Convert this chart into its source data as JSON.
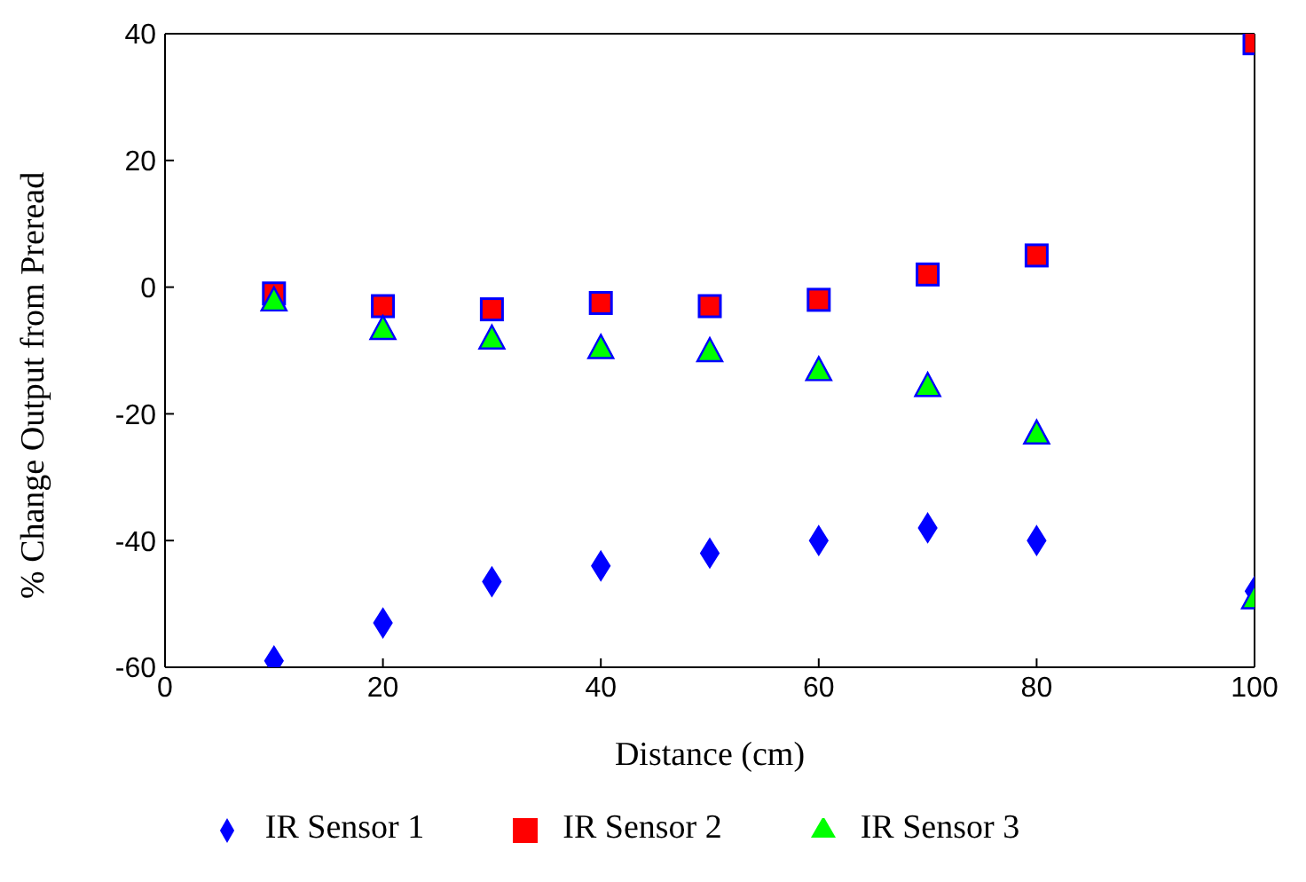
{
  "chart_data": {
    "type": "scatter",
    "xlabel": "Distance (cm)",
    "ylabel": "% Change Output from Preread",
    "x": [
      10,
      20,
      30,
      40,
      50,
      60,
      70,
      80,
      100
    ],
    "series": [
      {
        "name": "IR Sensor 1",
        "color": "#0000ff",
        "marker": "diamond",
        "values": [
          -59,
          -53,
          -46.5,
          -44,
          -42,
          -40,
          -38,
          -40,
          -48
        ]
      },
      {
        "name": "IR Sensor 2",
        "color": "#ff0000",
        "marker": "square",
        "values": [
          -1,
          -3,
          -3.5,
          -2.5,
          -3,
          -2,
          2,
          5,
          38.5
        ]
      },
      {
        "name": "IR Sensor 3",
        "color": "#00ff00",
        "marker": "triangle",
        "values": [
          -2,
          -6.5,
          -8,
          -9.5,
          -10,
          -13,
          -15.5,
          -23,
          -49
        ]
      }
    ],
    "xlim": [
      0,
      100
    ],
    "xticks": [
      0,
      20,
      40,
      60,
      80,
      100
    ],
    "ylim": [
      -60,
      40
    ],
    "yticks": [
      -60,
      -40,
      -20,
      0,
      20,
      40
    ],
    "grid": false,
    "legend": "bottom"
  }
}
